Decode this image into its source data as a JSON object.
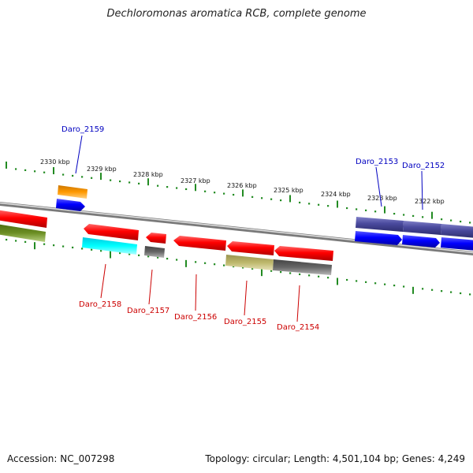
{
  "header": {
    "title": "Dechloromonas aromatica RCB, complete genome"
  },
  "footer": {
    "accession": "Accession: NC_007298",
    "summary": "Topology: circular; Length: 4,501,104 bp; Genes: 4,249"
  },
  "scale": {
    "ticks": [
      {
        "label": "2330 kbp"
      },
      {
        "label": "2329 kbp"
      },
      {
        "label": "2328 kbp"
      },
      {
        "label": "2327 kbp"
      },
      {
        "label": "2326 kbp"
      },
      {
        "label": "2325 kbp"
      },
      {
        "label": "2324 kbp"
      },
      {
        "label": "2323 kbp"
      },
      {
        "label": "2322 kbp"
      }
    ]
  },
  "genes": {
    "labeled": [
      {
        "name": "Daro_2159",
        "color": "#0000c0"
      },
      {
        "name": "Daro_2153",
        "color": "#0000c0"
      },
      {
        "name": "Daro_2152",
        "color": "#0000c0"
      },
      {
        "name": "Daro_2158",
        "color": "#cc0000"
      },
      {
        "name": "Daro_2157",
        "color": "#cc0000"
      },
      {
        "name": "Daro_2156",
        "color": "#cc0000"
      },
      {
        "name": "Daro_2155",
        "color": "#cc0000"
      },
      {
        "name": "Daro_2154",
        "color": "#cc0000"
      }
    ]
  },
  "colors": {
    "red": "#ff0000",
    "blue": "#0000ff",
    "dark_blue": "#4a4a9e",
    "orange": "#ff9900",
    "cyan": "#00e5ff",
    "olive": "#6b8e23",
    "gray": "#666666",
    "khaki": "#bdb76b",
    "tick_green": "#228b22",
    "backbone": "#888888"
  }
}
